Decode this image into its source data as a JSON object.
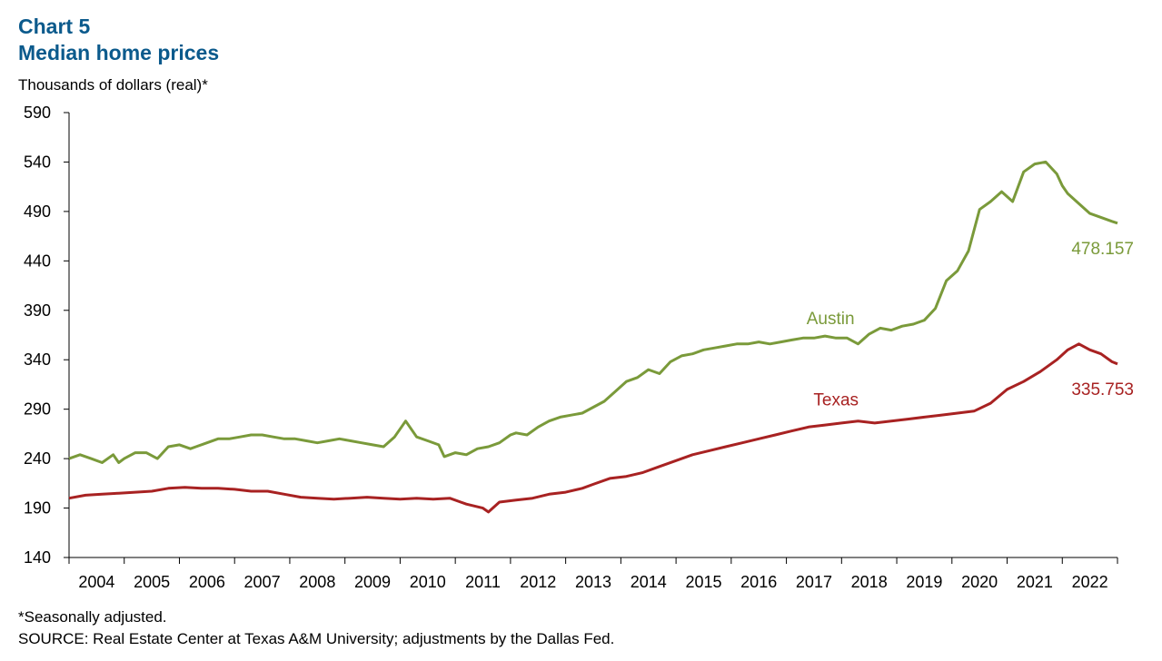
{
  "chart_title": "Chart 5",
  "chart_subtitle": "Median home prices",
  "y_label": "Thousands of dollars (real)*",
  "footnote": "*Seasonally adjusted.",
  "source": "SOURCE: Real Estate Center at Texas A&M University; adjustments by the Dallas Fed.",
  "colors": {
    "austin": "#7a9a3a",
    "texas": "#a82222",
    "title": "#0b5a8c"
  },
  "chart_data": {
    "type": "line",
    "title": "Median home prices",
    "xlabel": "",
    "ylabel": "Thousands of dollars (real)*",
    "ylim": [
      140,
      590
    ],
    "yticks": [
      140,
      190,
      240,
      290,
      340,
      390,
      440,
      490,
      540,
      590
    ],
    "xlim": [
      2003.5,
      2022.5
    ],
    "x_tick_labels": [
      "2004",
      "2005",
      "2006",
      "2007",
      "2008",
      "2009",
      "2010",
      "2011",
      "2012",
      "2013",
      "2014",
      "2015",
      "2016",
      "2017",
      "2018",
      "2019",
      "2020",
      "2021",
      "2022"
    ],
    "grid": false,
    "series": [
      {
        "name": "Austin",
        "color": "#7a9a3a",
        "end_label": "478.157",
        "x": [
          2003.5,
          2003.7,
          2003.9,
          2004.1,
          2004.3,
          2004.4,
          2004.5,
          2004.7,
          2004.9,
          2005.1,
          2005.3,
          2005.5,
          2005.7,
          2005.8,
          2006.0,
          2006.2,
          2006.4,
          2006.6,
          2006.8,
          2007.0,
          2007.2,
          2007.4,
          2007.6,
          2007.8,
          2008.0,
          2008.2,
          2008.4,
          2008.6,
          2008.8,
          2009.0,
          2009.2,
          2009.4,
          2009.6,
          2009.8,
          2010.0,
          2010.2,
          2010.3,
          2010.5,
          2010.7,
          2010.9,
          2011.1,
          2011.3,
          2011.5,
          2011.6,
          2011.8,
          2012.0,
          2012.2,
          2012.4,
          2012.6,
          2012.8,
          2013.0,
          2013.2,
          2013.4,
          2013.6,
          2013.8,
          2014.0,
          2014.2,
          2014.4,
          2014.6,
          2014.8,
          2015.0,
          2015.2,
          2015.4,
          2015.6,
          2015.8,
          2016.0,
          2016.2,
          2016.4,
          2016.6,
          2016.8,
          2017.0,
          2017.2,
          2017.4,
          2017.6,
          2017.8,
          2018.0,
          2018.2,
          2018.4,
          2018.6,
          2018.8,
          2019.0,
          2019.2,
          2019.4,
          2019.6,
          2019.8,
          2020.0,
          2020.2,
          2020.4,
          2020.6,
          2020.8,
          2021.0,
          2021.2,
          2021.4,
          2021.5,
          2021.6,
          2021.8,
          2022.0,
          2022.2,
          2022.4,
          2022.5
        ],
        "y": [
          240,
          244,
          240,
          236,
          244,
          236,
          240,
          246,
          246,
          240,
          252,
          254,
          250,
          252,
          256,
          260,
          260,
          262,
          264,
          264,
          262,
          260,
          260,
          258,
          256,
          258,
          260,
          258,
          256,
          254,
          252,
          262,
          278,
          262,
          258,
          254,
          242,
          246,
          244,
          250,
          252,
          256,
          264,
          266,
          264,
          272,
          278,
          282,
          284,
          286,
          292,
          298,
          308,
          318,
          322,
          330,
          326,
          338,
          344,
          346,
          350,
          352,
          354,
          356,
          356,
          358,
          356,
          358,
          360,
          362,
          362,
          364,
          362,
          362,
          356,
          366,
          372,
          370,
          374,
          376,
          380,
          392,
          420,
          430,
          450,
          492,
          500,
          510,
          500,
          530,
          538,
          540,
          528,
          516,
          508,
          498,
          488,
          484,
          480,
          478.157
        ]
      },
      {
        "name": "Texas",
        "color": "#a82222",
        "end_label": "335.753",
        "x": [
          2003.5,
          2003.8,
          2004.1,
          2004.4,
          2004.7,
          2005.0,
          2005.3,
          2005.6,
          2005.9,
          2006.2,
          2006.5,
          2006.8,
          2007.1,
          2007.4,
          2007.7,
          2008.0,
          2008.3,
          2008.6,
          2008.9,
          2009.2,
          2009.5,
          2009.8,
          2010.1,
          2010.4,
          2010.7,
          2011.0,
          2011.1,
          2011.3,
          2011.6,
          2011.9,
          2012.2,
          2012.5,
          2012.8,
          2013.0,
          2013.3,
          2013.6,
          2013.9,
          2014.2,
          2014.5,
          2014.8,
          2015.1,
          2015.4,
          2015.7,
          2016.0,
          2016.3,
          2016.6,
          2016.9,
          2017.2,
          2017.5,
          2017.8,
          2018.1,
          2018.4,
          2018.7,
          2019.0,
          2019.3,
          2019.6,
          2019.9,
          2020.2,
          2020.5,
          2020.8,
          2021.1,
          2021.4,
          2021.6,
          2021.8,
          2022.0,
          2022.2,
          2022.4,
          2022.5
        ],
        "y": [
          200,
          203,
          204,
          205,
          206,
          207,
          210,
          211,
          210,
          210,
          209,
          207,
          207,
          204,
          201,
          200,
          199,
          200,
          201,
          200,
          199,
          200,
          199,
          200,
          194,
          190,
          186,
          196,
          198,
          200,
          204,
          206,
          210,
          214,
          220,
          222,
          226,
          232,
          238,
          244,
          248,
          252,
          256,
          260,
          264,
          268,
          272,
          274,
          276,
          278,
          276,
          278,
          280,
          282,
          284,
          286,
          288,
          296,
          310,
          318,
          328,
          340,
          350,
          356,
          350,
          346,
          338,
          335.753
        ]
      }
    ]
  }
}
